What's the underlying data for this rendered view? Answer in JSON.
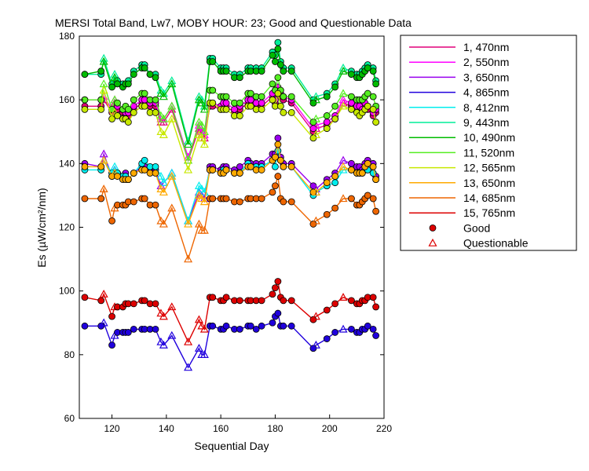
{
  "chart_data": {
    "type": "line",
    "title": "MERSI Total Band,  Lw7, MOBY HOUR: 23;  Good and Questionable Data",
    "xlabel": "Sequential Day",
    "ylabel": "Es (µW/cm²/nm)",
    "xlim": [
      108,
      220
    ],
    "ylim": [
      60,
      180
    ],
    "xticks": [
      "120",
      "140",
      "160",
      "180",
      "200",
      "220"
    ],
    "yticks": [
      "60",
      "80",
      "100",
      "120",
      "140",
      "160",
      "180"
    ],
    "grid": false,
    "legend_position": "right",
    "x": [
      110,
      116,
      117,
      120,
      121,
      122,
      124,
      125,
      126,
      128,
      131,
      132,
      134,
      136,
      138,
      139,
      142,
      148,
      152,
      153,
      154,
      156,
      157,
      160,
      161,
      162,
      165,
      167,
      170,
      171,
      173,
      175,
      179,
      180,
      181,
      182,
      183,
      186,
      194,
      195,
      199,
      202,
      205,
      208,
      210,
      211,
      212,
      213,
      214,
      216,
      217
    ],
    "markers": {
      "good": "filled circle",
      "questionable": "open triangle",
      "questionable_x": [
        117,
        121,
        138,
        139,
        142,
        148,
        152,
        153,
        154,
        195,
        205
      ]
    },
    "series": [
      {
        "name": "1, 470nm",
        "color": "#e0007a",
        "values": [
          158,
          158,
          160,
          156,
          159,
          157,
          156,
          155,
          155,
          157,
          159,
          159,
          158,
          158,
          153,
          153,
          157,
          141,
          151,
          149,
          148,
          158,
          158,
          157,
          158,
          158,
          156,
          157,
          159,
          159,
          158,
          158,
          161,
          159,
          163,
          161,
          160,
          159,
          150,
          151,
          152,
          154,
          159,
          158,
          157,
          157,
          156,
          158,
          157,
          155,
          156
        ]
      },
      {
        "name": "2, 550nm",
        "color": "#ff00ff",
        "values": [
          160,
          160,
          161,
          157,
          160,
          158,
          157,
          156,
          156,
          158,
          160,
          160,
          159,
          159,
          154,
          154,
          158,
          142,
          152,
          150,
          149,
          159,
          159,
          158,
          159,
          159,
          157,
          158,
          160,
          160,
          159,
          159,
          162,
          160,
          164,
          162,
          161,
          160,
          151,
          152,
          153,
          155,
          160,
          159,
          158,
          158,
          157,
          159,
          158,
          156,
          157
        ]
      },
      {
        "name": "3, 650nm",
        "color": "#9900ee",
        "values": [
          140,
          139,
          143,
          136,
          138,
          137,
          136,
          137,
          135,
          137,
          139,
          139,
          138,
          138,
          133,
          134,
          137,
          122,
          131,
          130,
          129,
          139,
          139,
          138,
          139,
          139,
          138,
          139,
          141,
          140,
          140,
          140,
          143,
          143,
          148,
          142,
          140,
          140,
          133,
          132,
          135,
          137,
          141,
          140,
          139,
          139,
          138,
          140,
          141,
          140,
          136
        ]
      },
      {
        "name": "4, 865nm",
        "color": "#2000dd",
        "values": [
          89,
          89,
          90,
          83,
          86,
          87,
          87,
          87,
          87,
          88,
          88,
          88,
          88,
          88,
          84,
          83,
          86,
          76,
          82,
          80,
          80,
          89,
          89,
          88,
          88,
          89,
          88,
          88,
          89,
          89,
          88,
          89,
          90,
          92,
          93,
          89,
          89,
          89,
          82,
          83,
          85,
          87,
          88,
          88,
          87,
          87,
          88,
          88,
          89,
          88,
          86
        ]
      },
      {
        "name": "8, 412nm",
        "color": "#00eeee",
        "values": [
          138,
          138,
          141,
          137,
          139,
          137,
          136,
          136,
          135,
          137,
          140,
          141,
          139,
          139,
          136,
          134,
          137,
          122,
          133,
          132,
          131,
          138,
          138,
          137,
          138,
          138,
          137,
          137,
          140,
          139,
          139,
          139,
          141,
          139,
          144,
          141,
          139,
          139,
          130,
          131,
          133,
          134,
          138,
          138,
          137,
          137,
          137,
          138,
          138,
          137,
          135
        ]
      },
      {
        "name": "9, 443nm",
        "color": "#00ee99",
        "values": [
          168,
          168,
          173,
          165,
          168,
          166,
          165,
          165,
          166,
          169,
          171,
          171,
          168,
          168,
          163,
          162,
          166,
          147,
          161,
          160,
          158,
          173,
          173,
          170,
          170,
          170,
          168,
          168,
          170,
          170,
          170,
          170,
          175,
          174,
          178,
          172,
          170,
          170,
          160,
          161,
          162,
          165,
          170,
          169,
          168,
          168,
          169,
          170,
          171,
          170,
          166
        ]
      },
      {
        "name": "10, 490nm",
        "color": "#00bb00",
        "values": [
          168,
          169,
          172,
          164,
          167,
          165,
          164,
          165,
          165,
          168,
          170,
          170,
          168,
          167,
          162,
          161,
          165,
          146,
          160,
          159,
          157,
          172,
          172,
          169,
          169,
          169,
          167,
          167,
          169,
          169,
          169,
          169,
          174,
          172,
          176,
          171,
          169,
          169,
          159,
          160,
          161,
          164,
          169,
          168,
          167,
          167,
          168,
          169,
          170,
          169,
          165
        ]
      },
      {
        "name": "11, 520nm",
        "color": "#55ee22",
        "values": [
          160,
          160,
          165,
          157,
          160,
          159,
          157,
          158,
          157,
          160,
          162,
          162,
          160,
          160,
          155,
          154,
          158,
          141,
          153,
          152,
          150,
          163,
          163,
          161,
          161,
          161,
          159,
          159,
          162,
          162,
          161,
          161,
          165,
          163,
          167,
          163,
          161,
          161,
          153,
          154,
          155,
          158,
          162,
          161,
          160,
          160,
          160,
          161,
          162,
          161,
          158
        ]
      },
      {
        "name": "12, 565nm",
        "color": "#c8e800",
        "values": [
          157,
          157,
          163,
          154,
          156,
          155,
          154,
          154,
          153,
          156,
          158,
          158,
          156,
          156,
          150,
          149,
          154,
          138,
          149,
          148,
          146,
          159,
          159,
          157,
          157,
          157,
          155,
          155,
          158,
          158,
          157,
          157,
          160,
          158,
          162,
          158,
          156,
          156,
          148,
          149,
          151,
          154,
          158,
          157,
          156,
          155,
          156,
          157,
          158,
          157,
          153
        ]
      },
      {
        "name": "13, 650nm",
        "color": "#ffaa00",
        "values": [
          139,
          139,
          141,
          136,
          137,
          136,
          135,
          135,
          135,
          137,
          138,
          138,
          137,
          137,
          132,
          131,
          136,
          121,
          130,
          129,
          128,
          138,
          138,
          137,
          137,
          138,
          137,
          137,
          139,
          139,
          138,
          138,
          141,
          142,
          146,
          141,
          139,
          139,
          131,
          131,
          134,
          136,
          139,
          138,
          137,
          137,
          137,
          139,
          140,
          139,
          135
        ]
      },
      {
        "name": "14, 685nm",
        "color": "#ee6600",
        "values": [
          129,
          129,
          132,
          122,
          126,
          127,
          127,
          127,
          128,
          128,
          129,
          129,
          127,
          127,
          122,
          121,
          126,
          110,
          121,
          119,
          119,
          129,
          129,
          129,
          129,
          129,
          128,
          128,
          129,
          129,
          129,
          129,
          131,
          133,
          136,
          129,
          128,
          128,
          121,
          122,
          124,
          126,
          129,
          129,
          127,
          127,
          128,
          129,
          130,
          129,
          125
        ]
      },
      {
        "name": "15, 765nm",
        "color": "#dd0000",
        "values": [
          98,
          97,
          99,
          92,
          95,
          95,
          95,
          96,
          96,
          96,
          97,
          97,
          96,
          96,
          93,
          92,
          95,
          84,
          91,
          89,
          88,
          98,
          98,
          97,
          97,
          98,
          97,
          97,
          97,
          97,
          97,
          97,
          99,
          101,
          103,
          98,
          97,
          97,
          91,
          92,
          94,
          96,
          98,
          97,
          96,
          96,
          97,
          97,
          98,
          98,
          95
        ]
      }
    ],
    "legend_markers": [
      {
        "label": "Good",
        "symbol": "circle"
      },
      {
        "label": "Questionable",
        "symbol": "triangle"
      }
    ]
  }
}
